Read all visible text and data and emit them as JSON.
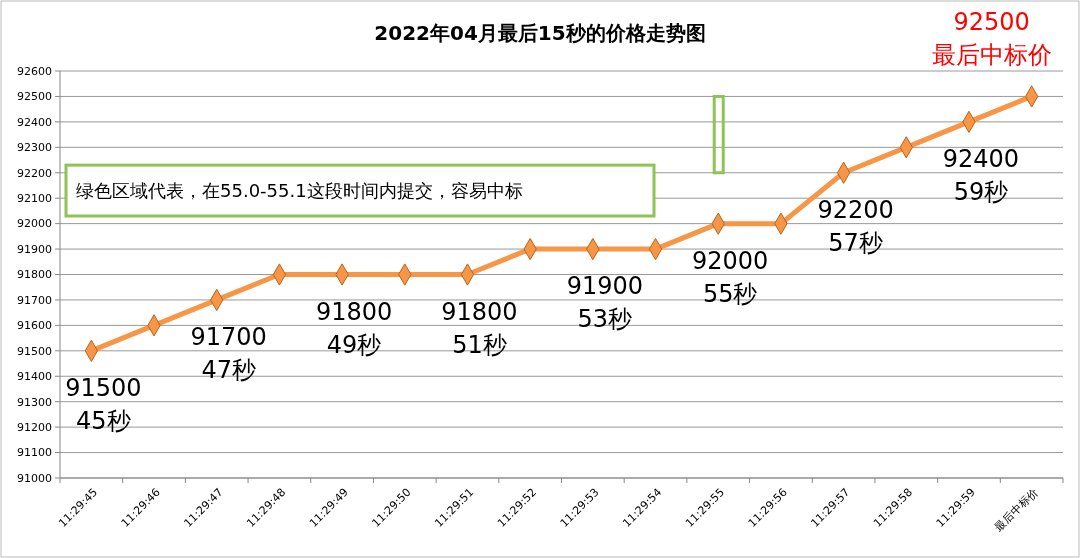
{
  "chart_data": {
    "type": "line",
    "title": "2022年04月最后15秒的价格走势图",
    "categories": [
      "11:29:45",
      "11:29:46",
      "11:29:47",
      "11:29:48",
      "11:29:49",
      "11:29:50",
      "11:29:51",
      "11:29:52",
      "11:29:53",
      "11:29:54",
      "11:29:55",
      "11:29:56",
      "11:29:57",
      "11:29:58",
      "11:29:59",
      "最后中标价"
    ],
    "series": [
      {
        "color": "#f79646",
        "values": [
          91500,
          91600,
          91700,
          91800,
          91800,
          91800,
          91800,
          91900,
          91900,
          91900,
          92000,
          92000,
          92200,
          92300,
          92400,
          92500
        ],
        "value_labels": [
          "91500\n45秒",
          null,
          "91700\n47秒",
          null,
          "91800\n49秒",
          null,
          "91800\n51秒",
          null,
          "91900\n53秒",
          null,
          "92000\n55秒",
          null,
          "92200\n57秒",
          null,
          "92400\n59秒",
          "92500\n最后中标价"
        ]
      }
    ],
    "ylim": [
      91000,
      92600
    ],
    "yticks": [
      91000,
      91100,
      91200,
      91300,
      91400,
      91500,
      91600,
      91700,
      91800,
      91900,
      92000,
      92100,
      92200,
      92300,
      92400,
      92500,
      92600
    ],
    "grid": "y",
    "marker": "diamond",
    "line_style": "solid",
    "annotations": [
      "绿色区域代表，在55.0-55.1这段时间内提交，容易中标"
    ]
  }
}
